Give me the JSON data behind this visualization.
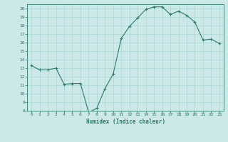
{
  "x": [
    0,
    1,
    2,
    3,
    4,
    5,
    6,
    7,
    8,
    9,
    10,
    11,
    12,
    13,
    14,
    15,
    16,
    17,
    18,
    19,
    20,
    21,
    22,
    23
  ],
  "y": [
    13.3,
    12.8,
    12.8,
    13.0,
    11.1,
    11.2,
    11.2,
    7.8,
    8.3,
    10.6,
    12.3,
    16.5,
    17.9,
    18.9,
    19.9,
    20.2,
    20.2,
    19.3,
    19.7,
    19.2,
    18.4,
    16.3,
    16.4,
    15.9
  ],
  "line_color": "#2d7a6a",
  "marker": "+",
  "marker_size": 3.5,
  "bg_color": "#cce8e8",
  "grid_color": "#b0d8d8",
  "tick_color": "#2d7a6a",
  "label_color": "#2d7a6a",
  "xlabel": "Humidex (Indice chaleur)",
  "ylabel": "",
  "xlim": [
    -0.5,
    23.5
  ],
  "ylim": [
    8,
    20.5
  ],
  "yticks": [
    8,
    9,
    10,
    11,
    12,
    13,
    14,
    15,
    16,
    17,
    18,
    19,
    20
  ],
  "xticks": [
    0,
    1,
    2,
    3,
    4,
    5,
    6,
    7,
    8,
    9,
    10,
    11,
    12,
    13,
    14,
    15,
    16,
    17,
    18,
    19,
    20,
    21,
    22,
    23
  ]
}
